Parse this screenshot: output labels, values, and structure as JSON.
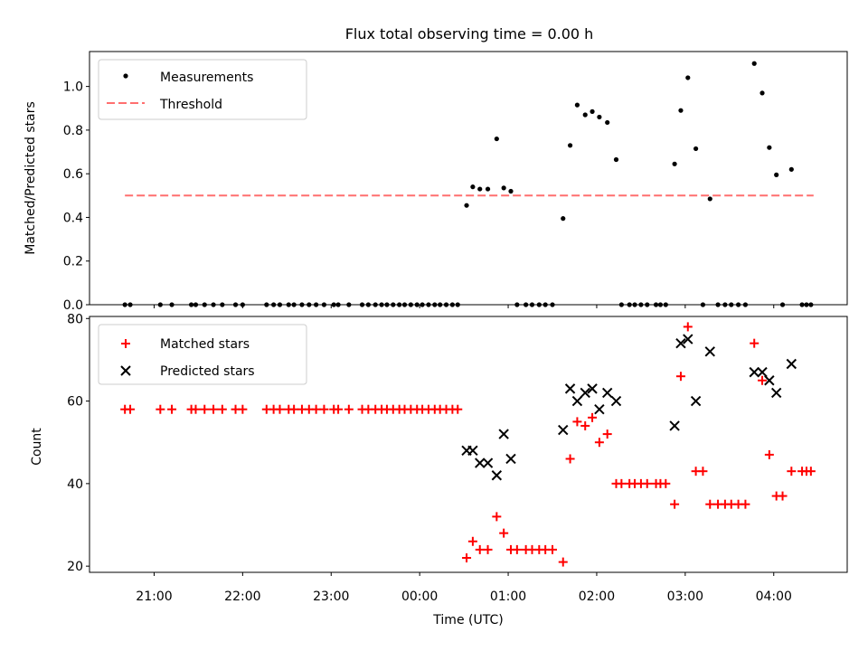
{
  "chart_data": [
    {
      "type": "scatter",
      "title": "Flux total observing time = 0.00 h",
      "xlabel": "",
      "ylabel": "Matched/Predicted stars",
      "ylim": [
        0,
        1.16
      ],
      "xlim_hours": [
        20.27,
        28.83
      ],
      "yticks": [
        0.0,
        0.2,
        0.4,
        0.6,
        0.8,
        1.0
      ],
      "ytick_labels": [
        "0.0",
        "0.2",
        "0.4",
        "0.6",
        "0.8",
        "1.0"
      ],
      "legend_position": "top-left",
      "legend": [
        "Measurements",
        "Threshold"
      ],
      "threshold": {
        "value": 0.5,
        "x_start": 20.67,
        "x_end": 28.45,
        "color": "#ff6f6f"
      },
      "measurements": {
        "color": "#000000",
        "x": [
          20.67,
          20.73,
          21.07,
          21.2,
          21.42,
          21.47,
          21.57,
          21.67,
          21.77,
          21.92,
          22.0,
          22.27,
          22.35,
          22.42,
          22.52,
          22.58,
          22.67,
          22.75,
          22.83,
          22.92,
          23.03,
          23.08,
          23.2,
          23.35,
          23.42,
          23.5,
          23.57,
          23.63,
          23.7,
          23.77,
          23.83,
          23.9,
          23.97,
          24.03,
          24.1,
          24.17,
          24.23,
          24.3,
          24.37,
          24.43,
          24.53,
          24.6,
          24.68,
          24.77,
          24.87,
          24.95,
          25.03,
          25.1,
          25.2,
          25.27,
          25.35,
          25.42,
          25.5,
          25.62,
          25.7,
          25.78,
          25.87,
          25.95,
          26.03,
          26.12,
          26.22,
          26.28,
          26.37,
          26.43,
          26.5,
          26.57,
          26.67,
          26.72,
          26.78,
          26.88,
          26.95,
          27.03,
          27.12,
          27.2,
          27.28,
          27.37,
          27.45,
          27.52,
          27.6,
          27.68,
          27.78,
          27.87,
          27.95,
          28.03,
          28.1,
          28.2,
          28.32,
          28.37,
          28.42
        ],
        "y": [
          0.0,
          0.0,
          0.0,
          0.0,
          0.0,
          0.0,
          0.0,
          0.0,
          0.0,
          0.0,
          0.0,
          0.0,
          0.0,
          0.0,
          0.0,
          0.0,
          0.0,
          0.0,
          0.0,
          0.0,
          0.0,
          0.0,
          0.0,
          0.0,
          0.0,
          0.0,
          0.0,
          0.0,
          0.0,
          0.0,
          0.0,
          0.0,
          0.0,
          0.0,
          0.0,
          0.0,
          0.0,
          0.0,
          0.0,
          0.0,
          0.455,
          0.54,
          0.53,
          0.53,
          0.76,
          0.535,
          0.52,
          0.0,
          0.0,
          0.0,
          0.0,
          0.0,
          0.0,
          0.395,
          0.73,
          0.915,
          0.87,
          0.885,
          0.86,
          0.835,
          0.665,
          0.0,
          0.0,
          0.0,
          0.0,
          0.0,
          0.0,
          0.0,
          0.0,
          0.645,
          0.89,
          1.04,
          0.715,
          0.0,
          0.485,
          0.0,
          0.0,
          0.0,
          0.0,
          0.0,
          1.105,
          0.97,
          0.72,
          0.595,
          0.0,
          0.62,
          0.0,
          0.0,
          0.0
        ]
      }
    },
    {
      "type": "scatter",
      "title": "",
      "xlabel": "Time (UTC)",
      "ylabel": "Count",
      "ylim": [
        18.5,
        80.5
      ],
      "xlim_hours": [
        20.27,
        28.83
      ],
      "yticks": [
        20,
        40,
        60,
        80
      ],
      "ytick_labels": [
        "20",
        "40",
        "60",
        "80"
      ],
      "xticks_hours": [
        21,
        22,
        23,
        24,
        25,
        26,
        27,
        28
      ],
      "xtick_labels": [
        "21:00",
        "22:00",
        "23:00",
        "00:00",
        "01:00",
        "02:00",
        "03:00",
        "04:00"
      ],
      "legend_position": "top-left",
      "legend": [
        "Matched stars",
        "Predicted stars"
      ],
      "series": [
        {
          "name": "Matched stars",
          "marker": "plus",
          "color": "#ff0000",
          "x": [
            20.67,
            20.73,
            21.07,
            21.2,
            21.42,
            21.47,
            21.57,
            21.67,
            21.77,
            21.92,
            22.0,
            22.27,
            22.35,
            22.42,
            22.52,
            22.58,
            22.67,
            22.75,
            22.83,
            22.92,
            23.03,
            23.08,
            23.2,
            23.35,
            23.42,
            23.5,
            23.57,
            23.63,
            23.7,
            23.77,
            23.83,
            23.9,
            23.97,
            24.03,
            24.1,
            24.17,
            24.23,
            24.3,
            24.37,
            24.43,
            24.53,
            24.6,
            24.68,
            24.77,
            24.87,
            24.95,
            25.03,
            25.1,
            25.2,
            25.27,
            25.35,
            25.42,
            25.5,
            25.62,
            25.7,
            25.78,
            25.87,
            25.95,
            26.03,
            26.12,
            26.22,
            26.28,
            26.37,
            26.43,
            26.5,
            26.57,
            26.67,
            26.72,
            26.78,
            26.88,
            26.95,
            27.03,
            27.12,
            27.2,
            27.28,
            27.37,
            27.45,
            27.52,
            27.6,
            27.68,
            27.78,
            27.87,
            27.95,
            28.03,
            28.1,
            28.2,
            28.32,
            28.37,
            28.42
          ],
          "values": [
            58,
            58,
            58,
            58,
            58,
            58,
            58,
            58,
            58,
            58,
            58,
            58,
            58,
            58,
            58,
            58,
            58,
            58,
            58,
            58,
            58,
            58,
            58,
            58,
            58,
            58,
            58,
            58,
            58,
            58,
            58,
            58,
            58,
            58,
            58,
            58,
            58,
            58,
            58,
            58,
            22,
            26,
            24,
            24,
            32,
            28,
            24,
            24,
            24,
            24,
            24,
            24,
            24,
            21,
            46,
            55,
            54,
            56,
            50,
            52,
            40,
            40,
            40,
            40,
            40,
            40,
            40,
            40,
            40,
            35,
            66,
            78,
            43,
            43,
            35,
            35,
            35,
            35,
            35,
            35,
            74,
            65,
            47,
            37,
            37,
            43,
            43,
            43,
            43
          ]
        },
        {
          "name": "Predicted stars",
          "marker": "x",
          "color": "#000000",
          "x": [
            24.53,
            24.6,
            24.68,
            24.77,
            24.87,
            24.95,
            25.03,
            25.62,
            25.7,
            25.78,
            25.87,
            25.95,
            26.03,
            26.12,
            26.22,
            26.88,
            26.95,
            27.03,
            27.12,
            27.28,
            27.78,
            27.87,
            27.95,
            28.03,
            28.2
          ],
          "values": [
            48,
            48,
            45,
            45,
            42,
            52,
            46,
            53,
            63,
            60,
            62,
            63,
            58,
            62,
            60,
            54,
            74,
            75,
            60,
            72,
            67,
            67,
            65,
            62,
            69
          ]
        }
      ]
    }
  ]
}
